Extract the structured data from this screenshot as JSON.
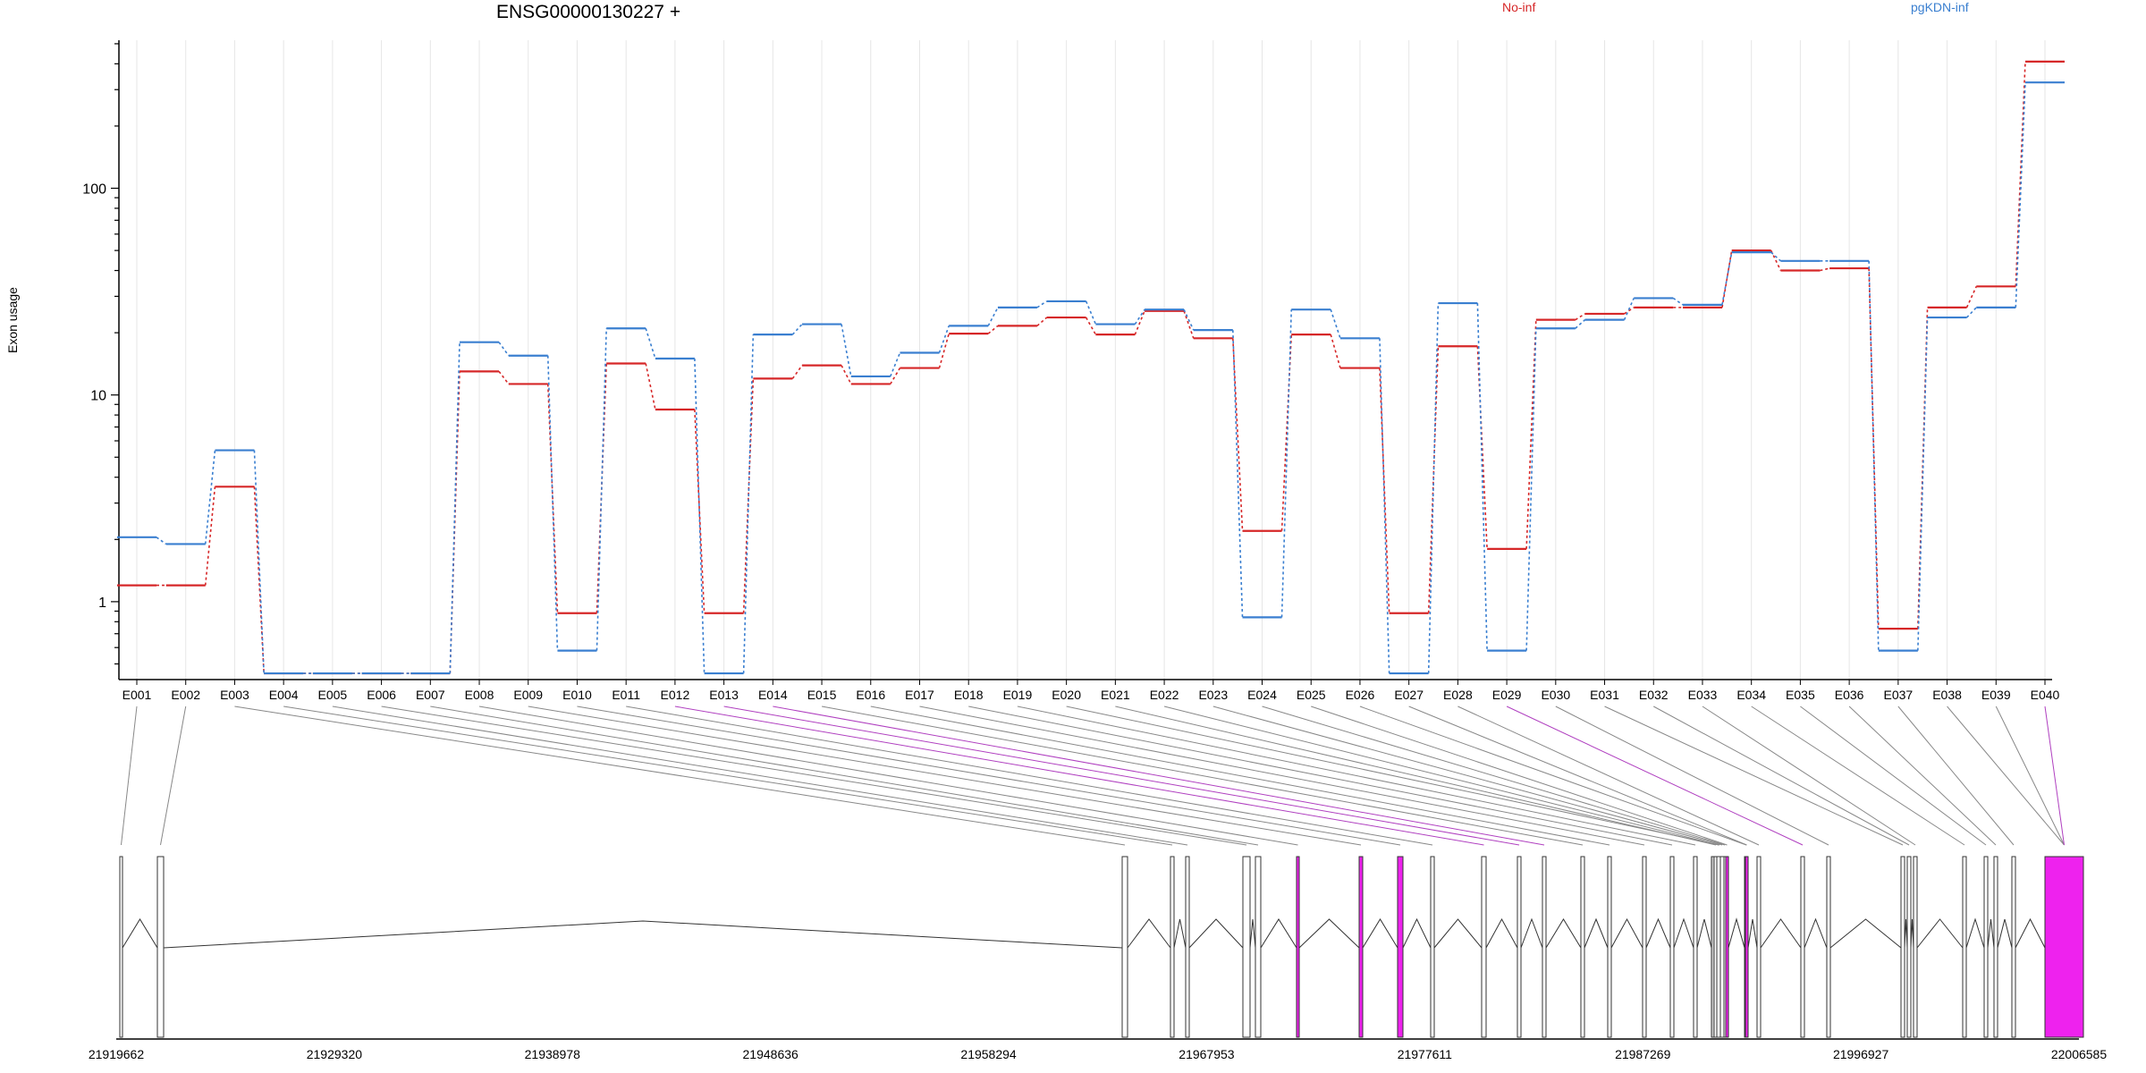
{
  "chart_data": {
    "type": "line",
    "gene": "ENSG00000130227 +",
    "ylabel": "Exon usage",
    "yscale": "log",
    "yticks": [
      1,
      10,
      100
    ],
    "ylim": [
      0.42,
      520
    ],
    "exons": [
      "E001",
      "E002",
      "E003",
      "E004",
      "E005",
      "E006",
      "E007",
      "E008",
      "E009",
      "E010",
      "E011",
      "E012",
      "E013",
      "E014",
      "E015",
      "E016",
      "E017",
      "E018",
      "E019",
      "E020",
      "E021",
      "E022",
      "E023",
      "E024",
      "E025",
      "E026",
      "E027",
      "E028",
      "E029",
      "E030",
      "E031",
      "E032",
      "E033",
      "E034",
      "E035",
      "E036",
      "E037",
      "E038",
      "E039",
      "E040"
    ],
    "series": [
      {
        "name": "No-inf",
        "color": "#d62728",
        "values": [
          1.2,
          1.2,
          3.6,
          0.45,
          0.45,
          0.45,
          0.45,
          13,
          11.3,
          0.88,
          14.2,
          8.5,
          0.88,
          12,
          13.9,
          11.3,
          13.5,
          19.8,
          21.6,
          23.7,
          19.6,
          25.5,
          18.8,
          2.2,
          19.6,
          13.5,
          0.88,
          17.2,
          1.8,
          23.1,
          24.7,
          26.5,
          26.5,
          50,
          40,
          41,
          0.74,
          26.5,
          33.5,
          410
        ]
      },
      {
        "name": "pgKDN-inf",
        "color": "#3a7fd0",
        "values": [
          2.05,
          1.9,
          5.4,
          0.45,
          0.45,
          0.45,
          0.45,
          18,
          15.5,
          0.58,
          21,
          15,
          0.45,
          19.6,
          22,
          12.3,
          16,
          21.6,
          26.5,
          28.4,
          22,
          25.9,
          20.6,
          0.84,
          25.9,
          18.8,
          0.45,
          27.8,
          0.58,
          21,
          23.1,
          29.4,
          27.3,
          49,
          44.5,
          44.5,
          0.58,
          23.7,
          26.5,
          325
        ]
      }
    ],
    "genome_axis": {
      "ticks": [
        "21919662",
        "21929320",
        "21938978",
        "21948636",
        "21958294",
        "21967953",
        "21977611",
        "21987269",
        "21996927",
        "22006585"
      ],
      "start": 21919662,
      "end": 22006585
    }
  }
}
